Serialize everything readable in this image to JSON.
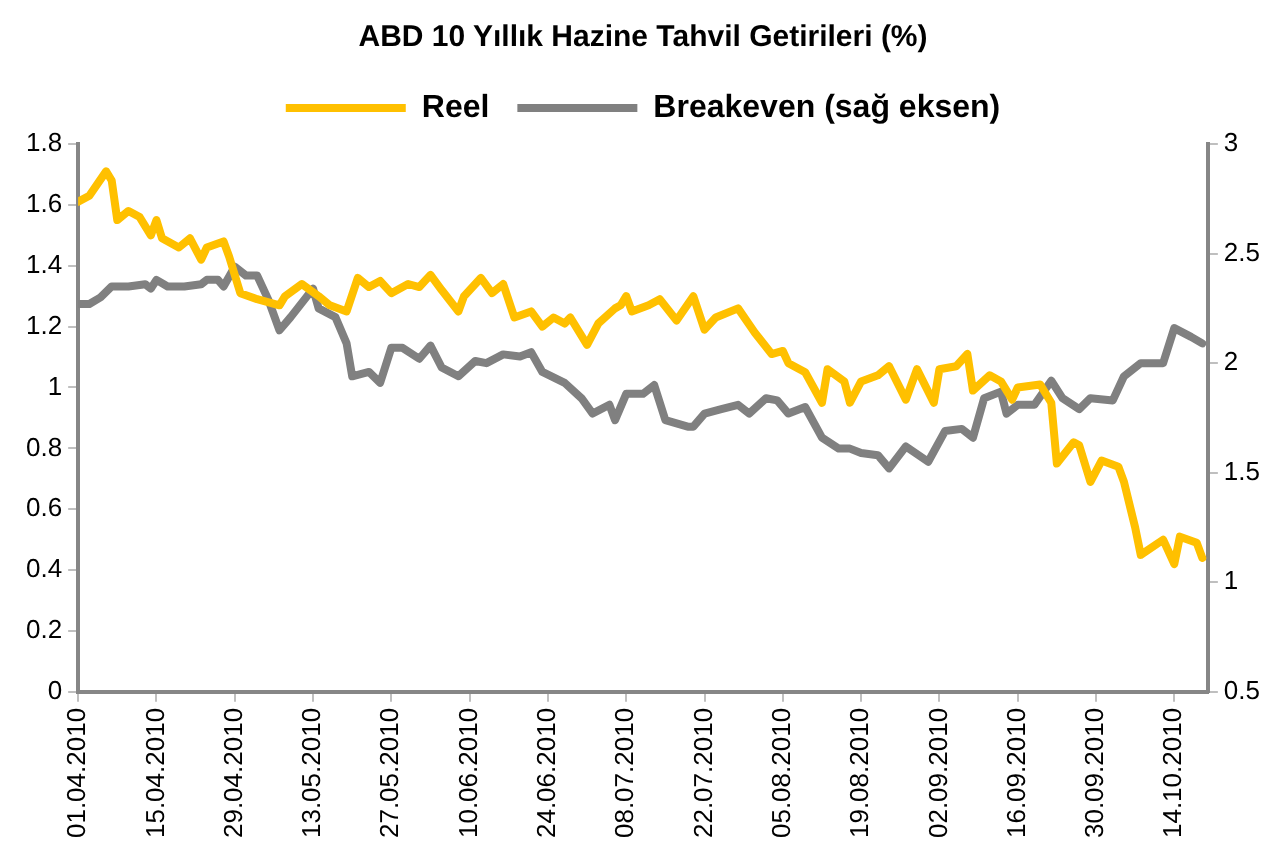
{
  "chart_data": {
    "type": "line",
    "title": "ABD 10 Yıllık Hazine Tahvil Getirileri (%)",
    "series": [
      {
        "name": "Reel",
        "color": "#ffc000",
        "axis": "y",
        "x": [
          "2010-04-01",
          "2010-04-03",
          "2010-04-06",
          "2010-04-07",
          "2010-04-08",
          "2010-04-10",
          "2010-04-12",
          "2010-04-14",
          "2010-04-15",
          "2010-04-16",
          "2010-04-19",
          "2010-04-21",
          "2010-04-23",
          "2010-04-24",
          "2010-04-27",
          "2010-04-28",
          "2010-04-30",
          "2010-05-03",
          "2010-05-07",
          "2010-05-08",
          "2010-05-11",
          "2010-05-14",
          "2010-05-16",
          "2010-05-19",
          "2010-05-21",
          "2010-05-23",
          "2010-05-25",
          "2010-05-27",
          "2010-05-30",
          "2010-06-01",
          "2010-06-03",
          "2010-06-05",
          "2010-06-08",
          "2010-06-09",
          "2010-06-12",
          "2010-06-14",
          "2010-06-16",
          "2010-06-18",
          "2010-06-21",
          "2010-06-23",
          "2010-06-25",
          "2010-06-27",
          "2010-06-28",
          "2010-07-01",
          "2010-07-03",
          "2010-07-06",
          "2010-07-07",
          "2010-07-08",
          "2010-07-09",
          "2010-07-12",
          "2010-07-14",
          "2010-07-17",
          "2010-07-20",
          "2010-07-22",
          "2010-07-24",
          "2010-07-28",
          "2010-07-31",
          "2010-08-03",
          "2010-08-05",
          "2010-08-06",
          "2010-08-09",
          "2010-08-12",
          "2010-08-13",
          "2010-08-16",
          "2010-08-17",
          "2010-08-19",
          "2010-08-22",
          "2010-08-24",
          "2010-08-27",
          "2010-08-29",
          "2010-09-01",
          "2010-09-02",
          "2010-09-05",
          "2010-09-07",
          "2010-09-08",
          "2010-09-11",
          "2010-09-13",
          "2010-09-15",
          "2010-09-16",
          "2010-09-20",
          "2010-09-22",
          "2010-09-23",
          "2010-09-26",
          "2010-09-27",
          "2010-09-29",
          "2010-10-01",
          "2010-10-04",
          "2010-10-05",
          "2010-10-07",
          "2010-10-08",
          "2010-10-12",
          "2010-10-14",
          "2010-10-15",
          "2010-10-18",
          "2010-10-19"
        ],
        "values": [
          1.61,
          1.63,
          1.71,
          1.68,
          1.55,
          1.58,
          1.56,
          1.5,
          1.55,
          1.49,
          1.46,
          1.49,
          1.42,
          1.46,
          1.48,
          1.43,
          1.31,
          1.29,
          1.27,
          1.3,
          1.34,
          1.3,
          1.27,
          1.25,
          1.36,
          1.33,
          1.35,
          1.31,
          1.34,
          1.33,
          1.37,
          1.32,
          1.25,
          1.3,
          1.36,
          1.31,
          1.34,
          1.23,
          1.25,
          1.2,
          1.23,
          1.21,
          1.23,
          1.14,
          1.21,
          1.26,
          1.27,
          1.3,
          1.25,
          1.27,
          1.29,
          1.22,
          1.3,
          1.19,
          1.23,
          1.26,
          1.18,
          1.11,
          1.12,
          1.08,
          1.05,
          0.95,
          1.06,
          1.02,
          0.95,
          1.02,
          1.04,
          1.07,
          0.96,
          1.06,
          0.95,
          1.06,
          1.07,
          1.11,
          0.99,
          1.04,
          1.02,
          0.96,
          1.0,
          1.01,
          0.95,
          0.75,
          0.82,
          0.81,
          0.69,
          0.76,
          0.74,
          0.69,
          0.54,
          0.45,
          0.5,
          0.42,
          0.51,
          0.49,
          0.44
        ]
      },
      {
        "name": "Breakeven (sağ eksen)",
        "color": "#808080",
        "axis": "y2",
        "x": [
          "2010-04-01",
          "2010-04-03",
          "2010-04-05",
          "2010-04-07",
          "2010-04-10",
          "2010-04-13",
          "2010-04-14",
          "2010-04-15",
          "2010-04-17",
          "2010-04-20",
          "2010-04-23",
          "2010-04-24",
          "2010-04-26",
          "2010-04-27",
          "2010-04-29",
          "2010-05-01",
          "2010-05-03",
          "2010-05-05",
          "2010-05-07",
          "2010-05-09",
          "2010-05-13",
          "2010-05-14",
          "2010-05-17",
          "2010-05-19",
          "2010-05-20",
          "2010-05-23",
          "2010-05-25",
          "2010-05-27",
          "2010-05-29",
          "2010-06-01",
          "2010-06-03",
          "2010-06-05",
          "2010-06-08",
          "2010-06-11",
          "2010-06-13",
          "2010-06-16",
          "2010-06-19",
          "2010-06-21",
          "2010-06-23",
          "2010-06-27",
          "2010-06-30",
          "2010-07-02",
          "2010-07-05",
          "2010-07-06",
          "2010-07-08",
          "2010-07-11",
          "2010-07-13",
          "2010-07-15",
          "2010-07-19",
          "2010-07-20",
          "2010-07-22",
          "2010-07-25",
          "2010-07-28",
          "2010-07-30",
          "2010-08-02",
          "2010-08-04",
          "2010-08-06",
          "2010-08-09",
          "2010-08-12",
          "2010-08-15",
          "2010-08-17",
          "2010-08-19",
          "2010-08-22",
          "2010-08-24",
          "2010-08-27",
          "2010-08-31",
          "2010-09-03",
          "2010-09-06",
          "2010-09-08",
          "2010-09-10",
          "2010-09-13",
          "2010-09-14",
          "2010-09-16",
          "2010-09-19",
          "2010-09-22",
          "2010-09-24",
          "2010-09-27",
          "2010-09-29",
          "2010-10-03",
          "2010-10-05",
          "2010-10-08",
          "2010-10-12",
          "2010-10-14",
          "2010-10-17",
          "2010-10-19"
        ],
        "values": [
          2.27,
          2.27,
          2.3,
          2.35,
          2.35,
          2.36,
          2.34,
          2.38,
          2.35,
          2.35,
          2.36,
          2.38,
          2.38,
          2.35,
          2.44,
          2.4,
          2.4,
          2.29,
          2.15,
          2.21,
          2.34,
          2.25,
          2.21,
          2.09,
          1.94,
          1.96,
          1.91,
          2.07,
          2.07,
          2.02,
          2.08,
          1.98,
          1.94,
          2.01,
          2.0,
          2.04,
          2.03,
          2.05,
          1.96,
          1.91,
          1.84,
          1.77,
          1.81,
          1.74,
          1.86,
          1.86,
          1.9,
          1.74,
          1.71,
          1.71,
          1.77,
          1.79,
          1.81,
          1.77,
          1.84,
          1.83,
          1.77,
          1.8,
          1.66,
          1.61,
          1.61,
          1.59,
          1.58,
          1.52,
          1.62,
          1.55,
          1.69,
          1.7,
          1.66,
          1.84,
          1.87,
          1.77,
          1.81,
          1.81,
          1.92,
          1.84,
          1.79,
          1.84,
          1.83,
          1.94,
          2.0,
          2.0,
          2.16,
          2.12,
          2.09
        ]
      }
    ],
    "xlim": [
      "2010-04-01",
      "2010-10-20"
    ],
    "xticks": [
      {
        "value": "2010-04-01",
        "label": "01.04.2010"
      },
      {
        "value": "2010-04-15",
        "label": "15.04.2010"
      },
      {
        "value": "2010-04-29",
        "label": "29.04.2010"
      },
      {
        "value": "2010-05-13",
        "label": "13.05.2010"
      },
      {
        "value": "2010-05-27",
        "label": "27.05.2010"
      },
      {
        "value": "2010-06-10",
        "label": "10.06.2010"
      },
      {
        "value": "2010-06-24",
        "label": "24.06.2010"
      },
      {
        "value": "2010-07-08",
        "label": "08.07.2010"
      },
      {
        "value": "2010-07-22",
        "label": "22.07.2010"
      },
      {
        "value": "2010-08-05",
        "label": "05.08.2010"
      },
      {
        "value": "2010-08-19",
        "label": "19.08.2010"
      },
      {
        "value": "2010-09-02",
        "label": "02.09.2010"
      },
      {
        "value": "2010-09-16",
        "label": "16.09.2010"
      },
      {
        "value": "2010-09-30",
        "label": "30.09.2010"
      },
      {
        "value": "2010-10-14",
        "label": "14.10.2010"
      }
    ],
    "ylim": [
      0,
      1.8
    ],
    "yticks": [
      0,
      0.2,
      0.4,
      0.6,
      0.8,
      1,
      1.2,
      1.4,
      1.6,
      1.8
    ],
    "y2lim": [
      0.5,
      3
    ],
    "y2ticks": [
      0.5,
      1,
      1.5,
      2,
      2.5,
      3
    ],
    "grid": false,
    "legend": "top",
    "marker": "none",
    "line_style": "solid"
  }
}
